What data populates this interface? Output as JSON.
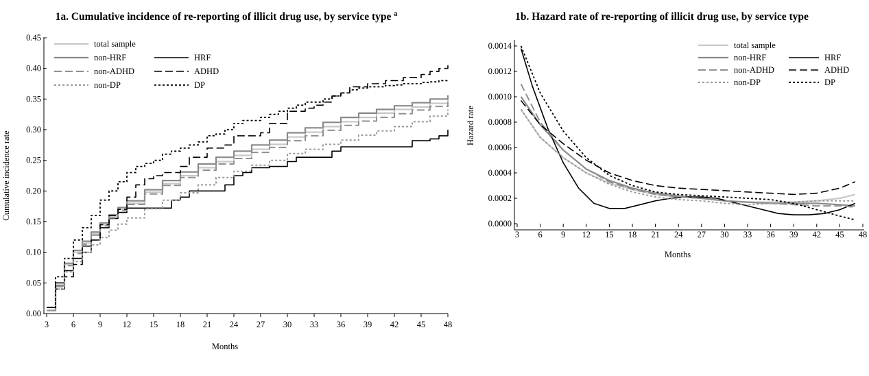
{
  "chart_data": [
    {
      "type": "line",
      "step": true,
      "title": "1a. Cumulative incidence of re-reporting of illicit drug use, by service type",
      "title_superscript": "a",
      "xlabel": "Months",
      "ylabel": "Cumulative incidence rate",
      "xlim": [
        3,
        48
      ],
      "ylim": [
        0,
        0.45
      ],
      "xticks": [
        3,
        6,
        9,
        12,
        15,
        18,
        21,
        24,
        27,
        30,
        33,
        36,
        39,
        42,
        45,
        48
      ],
      "yticks": [
        0.0,
        0.05,
        0.1,
        0.15,
        0.2,
        0.25,
        0.3,
        0.35,
        0.4,
        0.45
      ],
      "ytick_labels": [
        "0.00",
        "0.05",
        "0.10",
        "0.15",
        "0.20",
        "0.25",
        "0.30",
        "0.35",
        "0.40",
        "0.45"
      ],
      "legend_position": "top-left",
      "series": [
        {
          "name": "total sample",
          "color": "#c8c8c8",
          "dash": "solid",
          "width": 2.2,
          "x": [
            3,
            4,
            5,
            6,
            7,
            8,
            9,
            10,
            11,
            12,
            14,
            16,
            18,
            20,
            22,
            24,
            26,
            28,
            30,
            32,
            34,
            36,
            38,
            40,
            42,
            44,
            46,
            48
          ],
          "y": [
            0.005,
            0.045,
            0.08,
            0.1,
            0.115,
            0.13,
            0.145,
            0.158,
            0.17,
            0.18,
            0.198,
            0.212,
            0.225,
            0.238,
            0.248,
            0.258,
            0.268,
            0.276,
            0.288,
            0.296,
            0.305,
            0.313,
            0.32,
            0.327,
            0.333,
            0.337,
            0.343,
            0.35
          ]
        },
        {
          "name": "non-HRF",
          "color": "#8a8a8a",
          "dash": "solid",
          "width": 2.2,
          "x": [
            3,
            4,
            5,
            6,
            7,
            8,
            9,
            10,
            11,
            12,
            14,
            16,
            18,
            20,
            22,
            24,
            26,
            28,
            30,
            32,
            34,
            36,
            38,
            40,
            42,
            44,
            46,
            48
          ],
          "y": [
            0.005,
            0.046,
            0.082,
            0.103,
            0.118,
            0.133,
            0.148,
            0.161,
            0.173,
            0.184,
            0.202,
            0.217,
            0.231,
            0.244,
            0.255,
            0.265,
            0.275,
            0.283,
            0.295,
            0.303,
            0.312,
            0.32,
            0.327,
            0.333,
            0.339,
            0.344,
            0.35,
            0.356
          ]
        },
        {
          "name": "HRF",
          "color": "#000000",
          "dash": "solid",
          "width": 1.6,
          "x": [
            3,
            4,
            5,
            6,
            7,
            8,
            9,
            10,
            11,
            12,
            13,
            14,
            16,
            17,
            18,
            19,
            20,
            21,
            22,
            23,
            24,
            25,
            26,
            27,
            28,
            29,
            30,
            31,
            33,
            35,
            36,
            37,
            40,
            42,
            44,
            45,
            46,
            47,
            48
          ],
          "y": [
            0.01,
            0.05,
            0.07,
            0.09,
            0.11,
            0.12,
            0.14,
            0.155,
            0.165,
            0.172,
            0.172,
            0.172,
            0.172,
            0.185,
            0.19,
            0.2,
            0.2,
            0.2,
            0.2,
            0.21,
            0.225,
            0.23,
            0.238,
            0.238,
            0.24,
            0.24,
            0.248,
            0.255,
            0.255,
            0.265,
            0.272,
            0.272,
            0.272,
            0.272,
            0.282,
            0.282,
            0.285,
            0.29,
            0.3
          ]
        },
        {
          "name": "non-ADHD",
          "color": "#909090",
          "dash": "long",
          "width": 2.0,
          "x": [
            3,
            4,
            5,
            6,
            7,
            8,
            9,
            10,
            11,
            12,
            14,
            16,
            18,
            20,
            22,
            24,
            26,
            28,
            30,
            32,
            34,
            36,
            38,
            40,
            42,
            44,
            46,
            48
          ],
          "y": [
            0.005,
            0.044,
            0.078,
            0.098,
            0.113,
            0.128,
            0.143,
            0.156,
            0.168,
            0.178,
            0.195,
            0.209,
            0.222,
            0.234,
            0.244,
            0.253,
            0.263,
            0.271,
            0.282,
            0.29,
            0.299,
            0.307,
            0.314,
            0.32,
            0.326,
            0.332,
            0.338,
            0.345
          ]
        },
        {
          "name": "ADHD",
          "color": "#000000",
          "dash": "long",
          "width": 1.6,
          "x": [
            3,
            4,
            5,
            6,
            7,
            8,
            9,
            10,
            11,
            12,
            13,
            14,
            15,
            16,
            17,
            18,
            19,
            20,
            21,
            22,
            23,
            24,
            25,
            26,
            27,
            28,
            29,
            30,
            31,
            32,
            33,
            34,
            35,
            36,
            37,
            38,
            39,
            40,
            41,
            42,
            43,
            44,
            45,
            46,
            47,
            48
          ],
          "y": [
            0.01,
            0.04,
            0.06,
            0.08,
            0.1,
            0.12,
            0.145,
            0.16,
            0.17,
            0.19,
            0.21,
            0.22,
            0.225,
            0.23,
            0.23,
            0.24,
            0.255,
            0.255,
            0.27,
            0.27,
            0.275,
            0.29,
            0.29,
            0.29,
            0.295,
            0.31,
            0.31,
            0.33,
            0.33,
            0.335,
            0.34,
            0.345,
            0.355,
            0.36,
            0.37,
            0.37,
            0.375,
            0.375,
            0.38,
            0.38,
            0.385,
            0.385,
            0.39,
            0.395,
            0.4,
            0.405
          ]
        },
        {
          "name": "non-DP",
          "color": "#999999",
          "dash": "dot",
          "width": 2.0,
          "x": [
            3,
            4,
            5,
            6,
            7,
            8,
            9,
            10,
            11,
            12,
            14,
            16,
            18,
            20,
            22,
            24,
            26,
            28,
            30,
            32,
            34,
            36,
            38,
            40,
            42,
            44,
            46,
            48
          ],
          "y": [
            0.005,
            0.04,
            0.068,
            0.085,
            0.1,
            0.112,
            0.124,
            0.136,
            0.146,
            0.156,
            0.171,
            0.185,
            0.197,
            0.21,
            0.222,
            0.232,
            0.242,
            0.25,
            0.261,
            0.268,
            0.276,
            0.283,
            0.291,
            0.298,
            0.305,
            0.313,
            0.322,
            0.333
          ]
        },
        {
          "name": "DP",
          "color": "#000000",
          "dash": "dot",
          "width": 1.8,
          "x": [
            3,
            4,
            5,
            6,
            7,
            8,
            9,
            10,
            11,
            12,
            13,
            14,
            15,
            16,
            17,
            18,
            19,
            20,
            21,
            22,
            23,
            24,
            25,
            26,
            27,
            28,
            29,
            30,
            31,
            32,
            33,
            34,
            35,
            36,
            37,
            38,
            39,
            40,
            41,
            42,
            43,
            44,
            45,
            46,
            47,
            48
          ],
          "y": [
            0.01,
            0.06,
            0.09,
            0.12,
            0.14,
            0.16,
            0.185,
            0.2,
            0.215,
            0.23,
            0.24,
            0.245,
            0.25,
            0.26,
            0.265,
            0.27,
            0.275,
            0.28,
            0.29,
            0.293,
            0.3,
            0.31,
            0.315,
            0.315,
            0.32,
            0.325,
            0.33,
            0.335,
            0.34,
            0.345,
            0.345,
            0.35,
            0.355,
            0.36,
            0.365,
            0.368,
            0.37,
            0.37,
            0.372,
            0.373,
            0.375,
            0.375,
            0.377,
            0.378,
            0.38,
            0.382
          ]
        }
      ]
    },
    {
      "type": "line",
      "step": false,
      "title": "1b. Hazard rate of re-reporting of illicit drug use, by service type",
      "xlabel": "Months",
      "ylabel": "Hazard rate",
      "xlim": [
        3,
        48
      ],
      "ylim": [
        0,
        0.0014
      ],
      "xticks": [
        3,
        6,
        9,
        12,
        15,
        18,
        21,
        24,
        27,
        30,
        33,
        36,
        39,
        42,
        45,
        48
      ],
      "yticks": [
        0,
        0.0002,
        0.0004,
        0.0006,
        0.0008,
        0.001,
        0.0012,
        0.0014
      ],
      "ytick_labels": [
        "0.0000",
        "0.0002",
        "0.0004",
        "0.0006",
        "0.0008",
        "0.0010",
        "0.0012",
        "0.0014"
      ],
      "legend_position": "top-right",
      "series": [
        {
          "name": "total sample",
          "color": "#c8c8c8",
          "dash": "solid",
          "width": 2.2,
          "x": [
            3.5,
            6,
            9,
            12,
            15,
            18,
            21,
            24,
            27,
            30,
            33,
            36,
            39,
            42,
            45,
            47
          ],
          "y": [
            0.0009,
            0.00068,
            0.00052,
            0.0004,
            0.00032,
            0.00027,
            0.00023,
            0.00021,
            0.0002,
            0.00018,
            0.00017,
            0.00017,
            0.00017,
            0.00018,
            0.0002,
            0.00023
          ]
        },
        {
          "name": "non-HRF",
          "color": "#8a8a8a",
          "dash": "solid",
          "width": 2.2,
          "x": [
            3.5,
            6,
            9,
            12,
            15,
            18,
            21,
            24,
            27,
            30,
            33,
            36,
            39,
            42,
            45,
            47
          ],
          "y": [
            0.001,
            0.00078,
            0.00058,
            0.00043,
            0.00034,
            0.00028,
            0.00024,
            0.00022,
            0.0002,
            0.00018,
            0.00017,
            0.00016,
            0.00016,
            0.00016,
            0.00015,
            0.00014
          ]
        },
        {
          "name": "HRF",
          "color": "#000000",
          "dash": "solid",
          "width": 1.6,
          "x": [
            3.5,
            5,
            7,
            9,
            11,
            13,
            15,
            17,
            19,
            21,
            23,
            25,
            27,
            29,
            31,
            33,
            35,
            37,
            39,
            41,
            43,
            45,
            47
          ],
          "y": [
            0.00138,
            0.00108,
            0.00075,
            0.00048,
            0.00028,
            0.00016,
            0.00012,
            0.00012,
            0.00015,
            0.00018,
            0.0002,
            0.00021,
            0.00021,
            0.0002,
            0.00017,
            0.00014,
            0.00011,
            8e-05,
            7e-05,
            7e-05,
            8e-05,
            0.00011,
            0.00016
          ]
        },
        {
          "name": "non-ADHD",
          "color": "#909090",
          "dash": "long",
          "width": 2.0,
          "x": [
            3.5,
            6,
            9,
            12,
            15,
            18,
            21,
            24,
            27,
            30,
            33,
            36,
            39,
            42,
            45,
            47
          ],
          "y": [
            0.0011,
            0.0008,
            0.00058,
            0.00043,
            0.00033,
            0.00027,
            0.00023,
            0.00021,
            0.0002,
            0.00018,
            0.00017,
            0.00016,
            0.00015,
            0.00014,
            0.00014,
            0.00013
          ]
        },
        {
          "name": "ADHD",
          "color": "#000000",
          "dash": "long",
          "width": 1.6,
          "x": [
            3.5,
            6,
            9,
            12,
            15,
            18,
            21,
            24,
            27,
            30,
            33,
            36,
            39,
            42,
            45,
            47
          ],
          "y": [
            0.00097,
            0.00078,
            0.00063,
            0.0005,
            0.0004,
            0.00034,
            0.0003,
            0.00028,
            0.00027,
            0.00026,
            0.00025,
            0.00024,
            0.00023,
            0.00024,
            0.00028,
            0.00033
          ]
        },
        {
          "name": "non-DP",
          "color": "#999999",
          "dash": "dot",
          "width": 2.0,
          "x": [
            3.5,
            6,
            9,
            12,
            15,
            18,
            21,
            24,
            27,
            30,
            33,
            36,
            39,
            42,
            45,
            47
          ],
          "y": [
            0.0009,
            0.00068,
            0.00052,
            0.0004,
            0.00031,
            0.00025,
            0.00021,
            0.00019,
            0.00018,
            0.00016,
            0.00015,
            0.00016,
            0.00017,
            0.00018,
            0.00018,
            0.00018
          ]
        },
        {
          "name": "DP",
          "color": "#000000",
          "dash": "dot",
          "width": 1.8,
          "x": [
            3.5,
            6,
            9,
            12,
            15,
            18,
            21,
            24,
            27,
            30,
            33,
            36,
            39,
            42,
            45,
            47
          ],
          "y": [
            0.0014,
            0.00103,
            0.00073,
            0.00052,
            0.00038,
            0.0003,
            0.00025,
            0.00023,
            0.00022,
            0.00021,
            0.0002,
            0.00019,
            0.00016,
            0.00011,
            6e-05,
            3e-05
          ]
        }
      ]
    }
  ]
}
